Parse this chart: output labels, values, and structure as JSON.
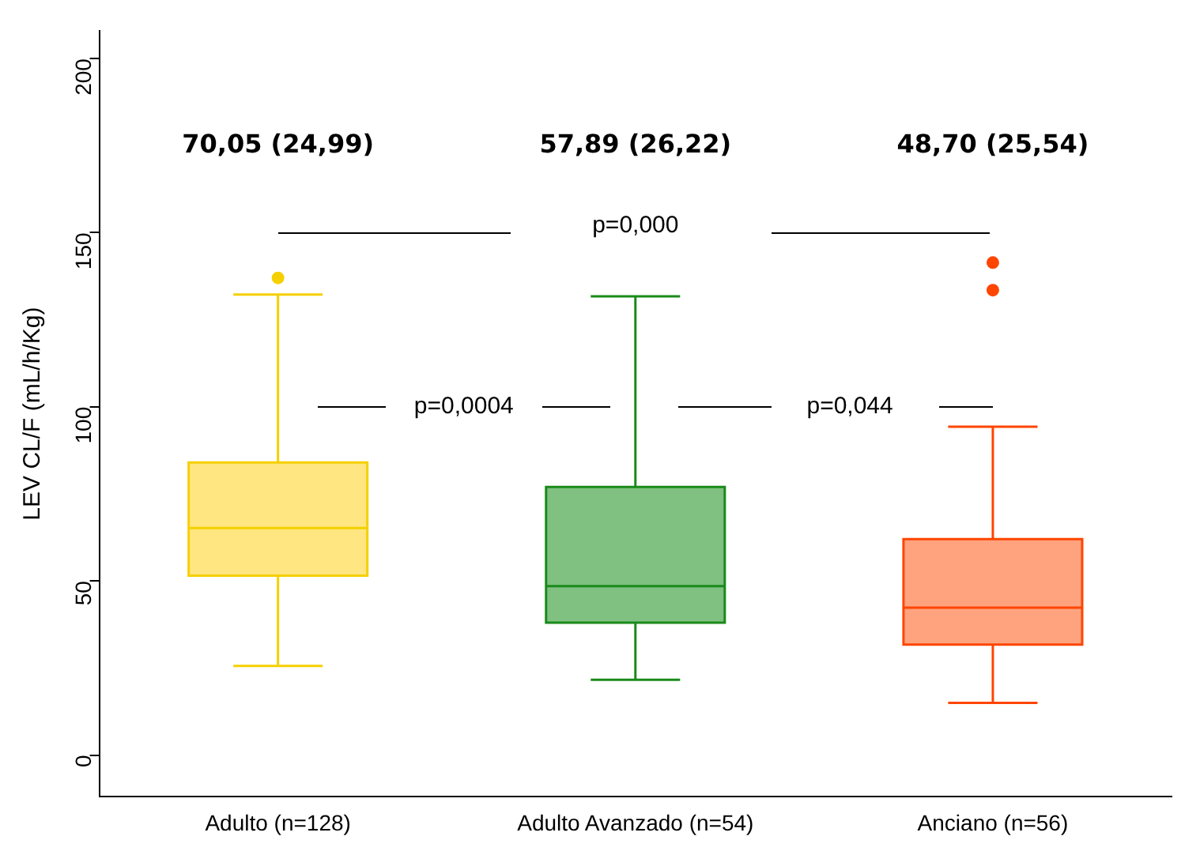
{
  "chart_data": {
    "type": "box",
    "ylabel": "LEV CL/F (mL/h/Kg)",
    "categories": [
      "Adulto (n=128)",
      "Adulto Avanzado (n=54)",
      "Anciano (n=56)"
    ],
    "colors": [
      "#ffe680",
      "#80c080",
      "#ffa37f"
    ],
    "boxes": [
      {
        "low": 25.6,
        "q1": 51.5,
        "median": 65.2,
        "q3": 84,
        "high": 132.2,
        "outliers": [
          137
        ]
      },
      {
        "low": 21.6,
        "q1": 38,
        "median": 48.5,
        "q3": 77,
        "high": 131.7
      },
      {
        "low": 15,
        "q1": 31.7,
        "median": 42.3,
        "q3": 62,
        "high": 94.3,
        "outliers": [
          141.4,
          133.5
        ]
      }
    ],
    "ylim": [
      -12,
      208
    ],
    "yticks": [
      0,
      50,
      100,
      150,
      200
    ],
    "grid": false,
    "legend": false,
    "annotations": [
      "70,05 (24,99)",
      "57,89 (26,22)",
      "48,70 (25,54)",
      "p=0,000",
      "p=0,0004",
      "p=0,044"
    ]
  }
}
